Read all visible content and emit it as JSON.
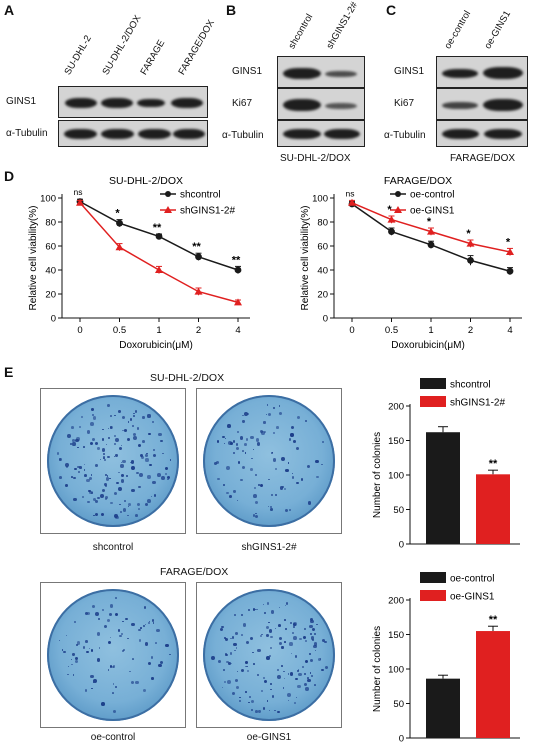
{
  "panel_a": {
    "letter": "A",
    "lanes": [
      "SU-DHL-2",
      "SU-DHL-2/DOX",
      "FARAGE",
      "FARAGE/DOX"
    ],
    "rows": [
      "GINS1",
      "α-Tubulin"
    ]
  },
  "panel_b": {
    "letter": "B",
    "lanes": [
      "shcontrol",
      "shGINS1-2#"
    ],
    "rows": [
      "GINS1",
      "Ki67",
      "α-Tubulin"
    ],
    "caption": "SU-DHL-2/DOX"
  },
  "panel_c": {
    "letter": "C",
    "lanes": [
      "oe-control",
      "oe-GINS1"
    ],
    "rows": [
      "GINS1",
      "Ki67",
      "α-Tubulin"
    ],
    "caption": "FARAGE/DOX"
  },
  "panel_d": {
    "letter": "D"
  },
  "panel_e": {
    "letter": "E",
    "top_title": "SU-DHL-2/DOX",
    "bottom_title": "FARAGE/DOX",
    "dish_labels": [
      "shcontrol",
      "shGINS1-2#",
      "oe-control",
      "oe-GINS1"
    ]
  },
  "chart_data": [
    {
      "type": "line",
      "title": "SU-DHL-2/DOX",
      "xlabel": "Doxorubicin(μM)",
      "ylabel": "Relative cell viability(%)",
      "categories": [
        "0",
        "0.5",
        "1",
        "2",
        "4"
      ],
      "ylim": [
        0,
        100
      ],
      "yticks": [
        0,
        20,
        40,
        60,
        80,
        100
      ],
      "series": [
        {
          "name": "shcontrol",
          "color": "#1a1a1a",
          "marker": "circle",
          "values": [
            97,
            79,
            68,
            51,
            40
          ],
          "errors": [
            2,
            3,
            2,
            3,
            3
          ]
        },
        {
          "name": "shGINS1-2#",
          "color": "#e02020",
          "marker": "triangle",
          "values": [
            96,
            59,
            40,
            22,
            13
          ],
          "errors": [
            2,
            3,
            3,
            3,
            2
          ]
        }
      ],
      "annotations": [
        "ns",
        "*",
        "**",
        "**",
        "**"
      ]
    },
    {
      "type": "line",
      "title": "FARAGE/DOX",
      "xlabel": "Doxorubicin(μM)",
      "ylabel": "Relative cell viability(%)",
      "categories": [
        "0",
        "0.5",
        "1",
        "2",
        "4"
      ],
      "ylim": [
        0,
        100
      ],
      "yticks": [
        0,
        20,
        40,
        60,
        80,
        100
      ],
      "series": [
        {
          "name": "oe-control",
          "color": "#1a1a1a",
          "marker": "circle",
          "values": [
            95,
            72,
            61,
            48,
            39
          ],
          "errors": [
            2,
            3,
            3,
            4,
            3
          ]
        },
        {
          "name": "oe-GINS1",
          "color": "#e02020",
          "marker": "triangle",
          "values": [
            96,
            82,
            72,
            62,
            55
          ],
          "errors": [
            2,
            3,
            3,
            3,
            3
          ]
        }
      ],
      "annotations": [
        "ns",
        "*",
        "*",
        "*",
        "*"
      ]
    },
    {
      "type": "bar",
      "ylabel": "Number of colonies",
      "categories": [
        "shcontrol",
        "shGINS1-2#"
      ],
      "values": [
        162,
        101
      ],
      "errors": [
        8,
        6
      ],
      "colors": [
        "#1a1a1a",
        "#e02020"
      ],
      "ylim": [
        0,
        200
      ],
      "yticks": [
        0,
        50,
        100,
        150,
        200
      ],
      "legend": [
        "shcontrol",
        "shGINS1-2#"
      ],
      "annotations": [
        "",
        "**"
      ]
    },
    {
      "type": "bar",
      "ylabel": "Number of colonies",
      "categories": [
        "oe-control",
        "oe-GINS1"
      ],
      "values": [
        86,
        155
      ],
      "errors": [
        5,
        7
      ],
      "colors": [
        "#1a1a1a",
        "#e02020"
      ],
      "ylim": [
        0,
        200
      ],
      "yticks": [
        0,
        50,
        100,
        150,
        200
      ],
      "legend": [
        "oe-control",
        "oe-GINS1"
      ],
      "annotations": [
        "",
        "**"
      ]
    }
  ]
}
